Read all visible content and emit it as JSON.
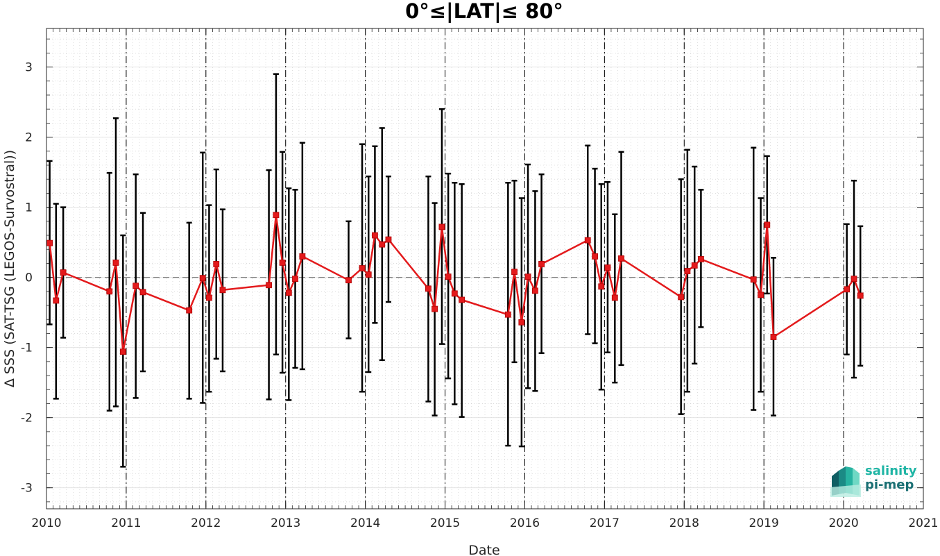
{
  "chart_data": {
    "type": "scatter",
    "title": "0°≤|LAT|≤ 80°",
    "xlabel": "Date",
    "ylabel": "Δ SSS (SAT-TSG (LEGOS-Survostral))",
    "xlim": [
      2010,
      2021
    ],
    "ylim": [
      -3.3,
      3.55
    ],
    "xticks": [
      2010,
      2011,
      2012,
      2013,
      2014,
      2015,
      2016,
      2017,
      2018,
      2019,
      2020,
      2021
    ],
    "yticks": [
      -3,
      -2,
      -1,
      0,
      1,
      2,
      3
    ],
    "grid": true,
    "zero_line": 0,
    "year_separators": [
      2011,
      2012,
      2013,
      2014,
      2015,
      2016,
      2017,
      2018,
      2019,
      2020
    ],
    "colors": {
      "line": "#e31a1c",
      "marker": "#e31a1c",
      "errorbar": "#000000",
      "separator": "#000000"
    },
    "series": [
      {
        "x": [
          2010.04,
          2010.12,
          2010.21,
          2010.79,
          2010.87,
          2010.96,
          2011.12,
          2011.21,
          2011.79,
          2011.96,
          2012.04,
          2012.13,
          2012.21,
          2012.79,
          2012.88,
          2012.96,
          2013.04,
          2013.12,
          2013.21,
          2013.79,
          2013.96,
          2014.04,
          2014.12,
          2014.21,
          2014.29,
          2014.79,
          2014.87,
          2014.96,
          2015.04,
          2015.12,
          2015.21,
          2015.79,
          2015.87,
          2015.96,
          2016.04,
          2016.13,
          2016.21,
          2016.79,
          2016.88,
          2016.96,
          2017.04,
          2017.13,
          2017.21,
          2017.96,
          2018.04,
          2018.13,
          2018.21,
          2018.87,
          2018.96,
          2019.04,
          2019.12,
          2020.04,
          2020.13,
          2020.21
        ],
        "y": [
          0.49,
          -0.33,
          0.07,
          -0.2,
          0.21,
          -1.06,
          -0.12,
          -0.21,
          -0.47,
          -0.01,
          -0.29,
          0.19,
          -0.18,
          -0.11,
          0.89,
          0.21,
          -0.22,
          -0.02,
          0.3,
          -0.04,
          0.13,
          0.04,
          0.6,
          0.47,
          0.54,
          -0.16,
          -0.45,
          0.72,
          0.01,
          -0.23,
          -0.32,
          -0.53,
          0.08,
          -0.64,
          0.01,
          -0.19,
          0.19,
          0.53,
          0.3,
          -0.13,
          0.14,
          -0.29,
          0.27,
          -0.28,
          0.09,
          0.17,
          0.26,
          -0.03,
          -0.25,
          0.75,
          -0.85,
          -0.17,
          -0.02,
          -0.26
        ],
        "err_low": [
          -0.67,
          -1.73,
          -0.86,
          -1.9,
          -1.84,
          -2.7,
          -1.72,
          -1.34,
          -1.73,
          -1.79,
          -1.63,
          -1.16,
          -1.34,
          -1.74,
          -1.1,
          -1.36,
          -1.75,
          -1.29,
          -1.31,
          -0.87,
          -1.63,
          -1.35,
          -0.65,
          -1.18,
          -0.35,
          -1.77,
          -1.97,
          -0.95,
          -1.44,
          -1.81,
          -1.99,
          -2.4,
          -1.21,
          -2.41,
          -1.58,
          -1.62,
          -1.08,
          -0.81,
          -0.94,
          -1.6,
          -1.07,
          -1.5,
          -1.25,
          -1.95,
          -1.63,
          -1.23,
          -0.71,
          -1.89,
          -1.63,
          -0.23,
          -1.97,
          -1.1,
          -1.43,
          -1.26
        ],
        "err_high": [
          1.66,
          1.05,
          1.0,
          1.49,
          2.27,
          0.6,
          1.47,
          0.92,
          0.78,
          1.78,
          1.03,
          1.54,
          0.97,
          1.53,
          2.9,
          1.79,
          1.27,
          1.25,
          1.92,
          0.8,
          1.9,
          1.44,
          1.87,
          2.13,
          1.44,
          1.44,
          1.06,
          2.4,
          1.48,
          1.35,
          1.33,
          1.35,
          1.38,
          1.13,
          1.61,
          1.23,
          1.47,
          1.88,
          1.55,
          1.33,
          1.36,
          0.9,
          1.79,
          1.4,
          1.82,
          1.58,
          1.25,
          1.85,
          1.13,
          1.73,
          0.28,
          0.76,
          1.38,
          0.73
        ]
      }
    ]
  },
  "logo": {
    "line1": "salinity",
    "line2": "pi-mep"
  }
}
